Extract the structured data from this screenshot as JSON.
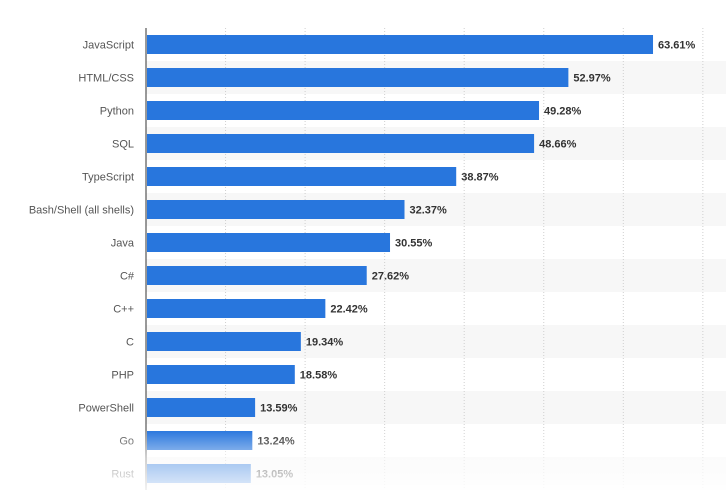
{
  "chart_data": {
    "type": "bar",
    "orientation": "horizontal",
    "categories": [
      "JavaScript",
      "HTML/CSS",
      "Python",
      "SQL",
      "TypeScript",
      "Bash/Shell (all shells)",
      "Java",
      "C#",
      "C++",
      "C",
      "PHP",
      "PowerShell",
      "Go",
      "Rust"
    ],
    "values": [
      63.61,
      52.97,
      49.28,
      48.66,
      38.87,
      32.37,
      30.55,
      27.62,
      22.42,
      19.34,
      18.58,
      13.59,
      13.24,
      13.05
    ],
    "value_labels": [
      "63.61%",
      "52.97%",
      "49.28%",
      "48.66%",
      "38.87%",
      "32.37%",
      "30.55%",
      "27.62%",
      "22.42%",
      "19.34%",
      "18.58%",
      "13.59%",
      "13.24%",
      "13.05%"
    ],
    "xlim": [
      0,
      73
    ],
    "grid": true,
    "colors": {
      "bar": "#2876dd",
      "alt_row": "#f7f7f7",
      "gridline": "#cfcfcf",
      "axis": "#333333"
    }
  }
}
